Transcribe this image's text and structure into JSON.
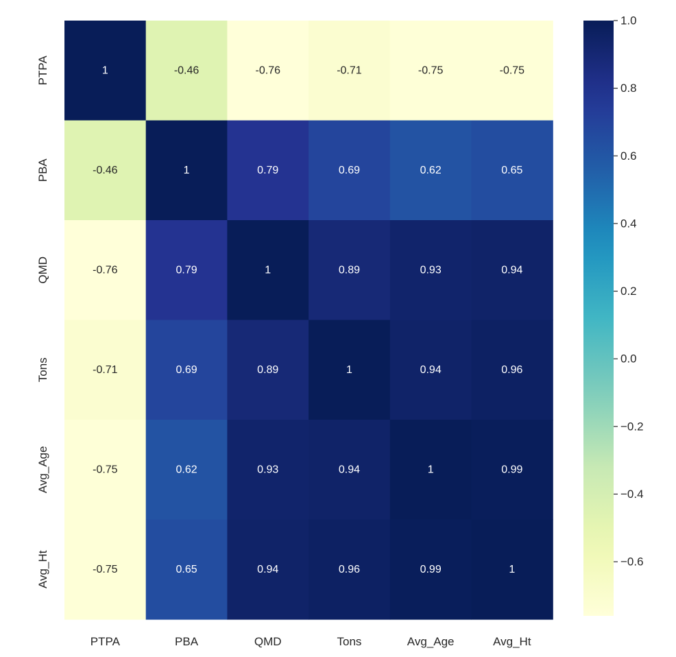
{
  "chart_data": {
    "type": "heatmap",
    "title": "",
    "xlabel": "",
    "ylabel": "",
    "x_categories": [
      "PTPA",
      "PBA",
      "QMD",
      "Tons",
      "Avg_Age",
      "Avg_Ht"
    ],
    "y_categories": [
      "PTPA",
      "PBA",
      "QMD",
      "Tons",
      "Avg_Age",
      "Avg_Ht"
    ],
    "values": [
      [
        1,
        -0.46,
        -0.76,
        -0.71,
        -0.75,
        -0.75
      ],
      [
        -0.46,
        1,
        0.79,
        0.69,
        0.62,
        0.65
      ],
      [
        -0.76,
        0.79,
        1,
        0.89,
        0.93,
        0.94
      ],
      [
        -0.71,
        0.69,
        0.89,
        1,
        0.94,
        0.96
      ],
      [
        -0.75,
        0.62,
        0.93,
        0.94,
        1,
        0.99
      ],
      [
        -0.75,
        0.65,
        0.94,
        0.96,
        0.99,
        1
      ]
    ],
    "cell_labels": [
      [
        "1",
        "-0.46",
        "-0.76",
        "-0.71",
        "-0.75",
        "-0.75"
      ],
      [
        "-0.46",
        "1",
        "0.79",
        "0.69",
        "0.62",
        "0.65"
      ],
      [
        "-0.76",
        "0.79",
        "1",
        "0.89",
        "0.93",
        "0.94"
      ],
      [
        "-0.71",
        "0.69",
        "0.89",
        "1",
        "0.94",
        "0.96"
      ],
      [
        "-0.75",
        "0.62",
        "0.93",
        "0.94",
        "1",
        "0.99"
      ],
      [
        "-0.75",
        "0.65",
        "0.94",
        "0.96",
        "0.99",
        "1"
      ]
    ],
    "colormap": "YlGnBu",
    "color_range": [
      -0.76,
      1.0
    ],
    "colorbar": {
      "ticks": [
        1.0,
        0.8,
        0.6,
        0.4,
        0.2,
        0.0,
        -0.2,
        -0.4,
        -0.6
      ],
      "tick_labels": [
        "1.0",
        "0.8",
        "0.6",
        "0.4",
        "0.2",
        "0.0",
        "−0.2",
        "−0.4",
        "−0.6"
      ],
      "placement": "right"
    },
    "grid": false
  }
}
